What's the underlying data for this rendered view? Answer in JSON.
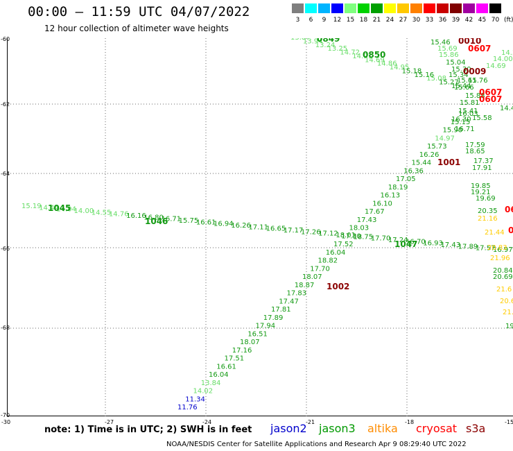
{
  "header": {
    "title": "00:00 – 11:59 UTC 04/07/2022",
    "subtitle": "12 hour collection of altimeter wave heights"
  },
  "scale": {
    "labels": [
      "3",
      "6",
      "9",
      "12",
      "15",
      "18",
      "21",
      "24",
      "27",
      "30",
      "33",
      "36",
      "39",
      "42",
      "45",
      "70"
    ],
    "unit": "(ft)",
    "colors": [
      "#7f7f7f",
      "#00ffff",
      "#00b4ff",
      "#0000ff",
      "#7fff7f",
      "#00d200",
      "#00a000",
      "#ffff00",
      "#ffc800",
      "#ff8000",
      "#ff0000",
      "#c80000",
      "#800000",
      "#a000a0",
      "#ff00ff",
      "#000000"
    ]
  },
  "axes": {
    "lat_labels": [
      "-60",
      "-62",
      "-64",
      "-66",
      "-68",
      "-70"
    ],
    "lon_labels": [
      "-30",
      "-27",
      "-24",
      "-21",
      "-18",
      "-15"
    ]
  },
  "footer": {
    "note": "note: 1) Time is in UTC; 2) SWH is in feet",
    "credit": "NOAA/NESDIS Center for Satellite Applications and Research   Apr  9 08:29:40 UTC 2022",
    "satellites": [
      {
        "name": "jason2",
        "color": "#0000cc"
      },
      {
        "name": "jason3",
        "color": "#009900"
      },
      {
        "name": "altika",
        "color": "#ff8c00"
      },
      {
        "name": "cryosat",
        "color": "#ff0000"
      },
      {
        "name": "s3a",
        "color": "#8b0000"
      }
    ]
  },
  "tracks": {
    "upper_track": [
      {
        "v": "13.87",
        "c": "#66dd66"
      },
      {
        "v": "13.94",
        "c": "#66dd66"
      },
      {
        "v": "13.24",
        "c": "#66dd66"
      },
      {
        "v": "13.25",
        "c": "#66dd66"
      },
      {
        "v": "14.72",
        "c": "#66dd66"
      },
      {
        "v": "14.91",
        "c": "#66dd66"
      },
      {
        "v": "14.69",
        "c": "#66dd66"
      },
      {
        "v": "14.86",
        "c": "#66dd66"
      },
      {
        "v": "14.95",
        "c": "#66dd66"
      },
      {
        "v": "15.18",
        "c": "#119911"
      },
      {
        "v": "15.16",
        "c": "#119911"
      },
      {
        "v": "15.08",
        "c": "#66dd66"
      },
      {
        "v": "15.27",
        "c": "#119911"
      },
      {
        "v": "15.44",
        "c": "#119911"
      }
    ],
    "west_track": [
      {
        "v": "15.19",
        "c": "#66dd66"
      },
      {
        "v": "14.44",
        "c": "#66dd66"
      },
      {
        "v": "14.04",
        "c": "#66dd66"
      },
      {
        "v": "14.00",
        "c": "#66dd66"
      },
      {
        "v": "14.55",
        "c": "#66dd66"
      },
      {
        "v": "14.76",
        "c": "#66dd66"
      },
      {
        "v": "16.16",
        "c": "#119911"
      },
      {
        "v": "16.80",
        "c": "#119911"
      },
      {
        "v": "16.71",
        "c": "#119911"
      },
      {
        "v": "15.75",
        "c": "#119911"
      },
      {
        "v": "16.61",
        "c": "#119911"
      },
      {
        "v": "16.94",
        "c": "#119911"
      },
      {
        "v": "16.26",
        "c": "#119911"
      },
      {
        "v": "17.11",
        "c": "#119911"
      },
      {
        "v": "16.65",
        "c": "#119911"
      },
      {
        "v": "17.17",
        "c": "#119911"
      },
      {
        "v": "17.26",
        "c": "#119911"
      },
      {
        "v": "17.12",
        "c": "#119911"
      },
      {
        "v": "18.01",
        "c": "#119911"
      },
      {
        "v": "18.75",
        "c": "#119911"
      },
      {
        "v": "17.70",
        "c": "#119911"
      },
      {
        "v": "17.24",
        "c": "#119911"
      },
      {
        "v": "16.70",
        "c": "#119911"
      },
      {
        "v": "16.93",
        "c": "#119911"
      },
      {
        "v": "17.43",
        "c": "#119911"
      },
      {
        "v": "17.89",
        "c": "#119911"
      },
      {
        "v": "17.57",
        "c": "#119911"
      },
      {
        "v": "16.97",
        "c": "#119911"
      }
    ],
    "diagonal_track": [
      {
        "v": "11.76",
        "c": "#0000cc"
      },
      {
        "v": "11.34",
        "c": "#0000cc"
      },
      {
        "v": "14.02",
        "c": "#66dd66"
      },
      {
        "v": "13.84",
        "c": "#66dd66"
      },
      {
        "v": "16.04",
        "c": "#119911"
      },
      {
        "v": "16.61",
        "c": "#119911"
      },
      {
        "v": "17.51",
        "c": "#119911"
      },
      {
        "v": "17.16",
        "c": "#119911"
      },
      {
        "v": "18.07",
        "c": "#119911"
      },
      {
        "v": "16.51",
        "c": "#119911"
      },
      {
        "v": "17.94",
        "c": "#119911"
      },
      {
        "v": "17.89",
        "c": "#119911"
      },
      {
        "v": "17.81",
        "c": "#119911"
      },
      {
        "v": "17.47",
        "c": "#119911"
      },
      {
        "v": "17.83",
        "c": "#119911"
      },
      {
        "v": "18.87",
        "c": "#119911"
      },
      {
        "v": "18.07",
        "c": "#119911"
      },
      {
        "v": "17.70",
        "c": "#119911"
      },
      {
        "v": "18.82",
        "c": "#119911"
      },
      {
        "v": "16.04",
        "c": "#119911"
      },
      {
        "v": "17.52",
        "c": "#119911"
      },
      {
        "v": "17.30",
        "c": "#119911"
      },
      {
        "v": "18.03",
        "c": "#119911"
      },
      {
        "v": "17.43",
        "c": "#119911"
      },
      {
        "v": "17.67",
        "c": "#119911"
      },
      {
        "v": "16.10",
        "c": "#119911"
      },
      {
        "v": "16.13",
        "c": "#119911"
      },
      {
        "v": "18.19",
        "c": "#119911"
      },
      {
        "v": "17.05",
        "c": "#119911"
      },
      {
        "v": "16.36",
        "c": "#119911"
      },
      {
        "v": "15.44",
        "c": "#119911"
      },
      {
        "v": "16.26",
        "c": "#119911"
      },
      {
        "v": "15.73",
        "c": "#119911"
      },
      {
        "v": "14.97",
        "c": "#66dd66"
      },
      {
        "v": "15.90",
        "c": "#119911"
      },
      {
        "v": "15.15",
        "c": "#119911"
      },
      {
        "v": "16.03",
        "c": "#119911"
      }
    ],
    "east_cluster": [
      {
        "v": "15.46",
        "c": "#119911"
      },
      {
        "v": "15.69",
        "c": "#66dd66"
      },
      {
        "v": "15.86",
        "c": "#66dd66"
      },
      {
        "v": "15.04",
        "c": "#119911"
      },
      {
        "v": "15.30",
        "c": "#119911"
      },
      {
        "v": "15.34",
        "c": "#119911"
      },
      {
        "v": "15.61",
        "c": "#119911"
      },
      {
        "v": "15.66",
        "c": "#119911"
      },
      {
        "v": "15.76",
        "c": "#119911"
      },
      {
        "v": "15.88",
        "c": "#119911"
      },
      {
        "v": "15.81",
        "c": "#119911"
      },
      {
        "v": "15.41",
        "c": "#119911"
      },
      {
        "v": "16.30",
        "c": "#119911"
      },
      {
        "v": "15.58",
        "c": "#119911"
      },
      {
        "v": "16.71",
        "c": "#119911"
      },
      {
        "v": "17.59",
        "c": "#119911"
      },
      {
        "v": "18.65",
        "c": "#119911"
      },
      {
        "v": "17.37",
        "c": "#119911"
      },
      {
        "v": "17.91",
        "c": "#119911"
      },
      {
        "v": "14.69",
        "c": "#66dd66"
      },
      {
        "v": "14.00",
        "c": "#66dd66"
      },
      {
        "v": "14.3",
        "c": "#66dd66"
      },
      {
        "v": "14.47",
        "c": "#119911"
      }
    ],
    "far_east_track": [
      {
        "v": "19.85",
        "c": "#119911"
      },
      {
        "v": "19.21",
        "c": "#119911"
      },
      {
        "v": "19.69",
        "c": "#119911"
      },
      {
        "v": "20.35",
        "c": "#119911"
      },
      {
        "v": "21.16",
        "c": "#ffcc00"
      },
      {
        "v": "21.44",
        "c": "#ffcc00"
      },
      {
        "v": "20.83",
        "c": "#ffcc00"
      },
      {
        "v": "21.96",
        "c": "#ffcc00"
      },
      {
        "v": "20.84",
        "c": "#119911"
      },
      {
        "v": "20.69",
        "c": "#119911"
      },
      {
        "v": "21.6",
        "c": "#ffcc00"
      },
      {
        "v": "20.6",
        "c": "#ffcc00"
      },
      {
        "v": "21.",
        "c": "#ffcc00"
      },
      {
        "v": "19",
        "c": "#119911"
      }
    ]
  },
  "cycle_labels": [
    {
      "v": "0849",
      "c": "#119911"
    },
    {
      "v": "0850",
      "c": "#119911"
    },
    {
      "v": "0010",
      "c": "#8b0000"
    },
    {
      "v": "0607",
      "c": "#ff0000"
    },
    {
      "v": "0009",
      "c": "#8b0000"
    },
    {
      "v": "0607",
      "c": "#ff0000"
    },
    {
      "v": "0607",
      "c": "#ff0000"
    },
    {
      "v": "1045",
      "c": "#119911"
    },
    {
      "v": "1046",
      "c": "#119911"
    },
    {
      "v": "1047",
      "c": "#119911"
    },
    {
      "v": "1001",
      "c": "#8b0000"
    },
    {
      "v": "1002",
      "c": "#8b0000"
    },
    {
      "v": "06",
      "c": "#ff0000"
    },
    {
      "v": "0",
      "c": "#ff0000"
    }
  ]
}
